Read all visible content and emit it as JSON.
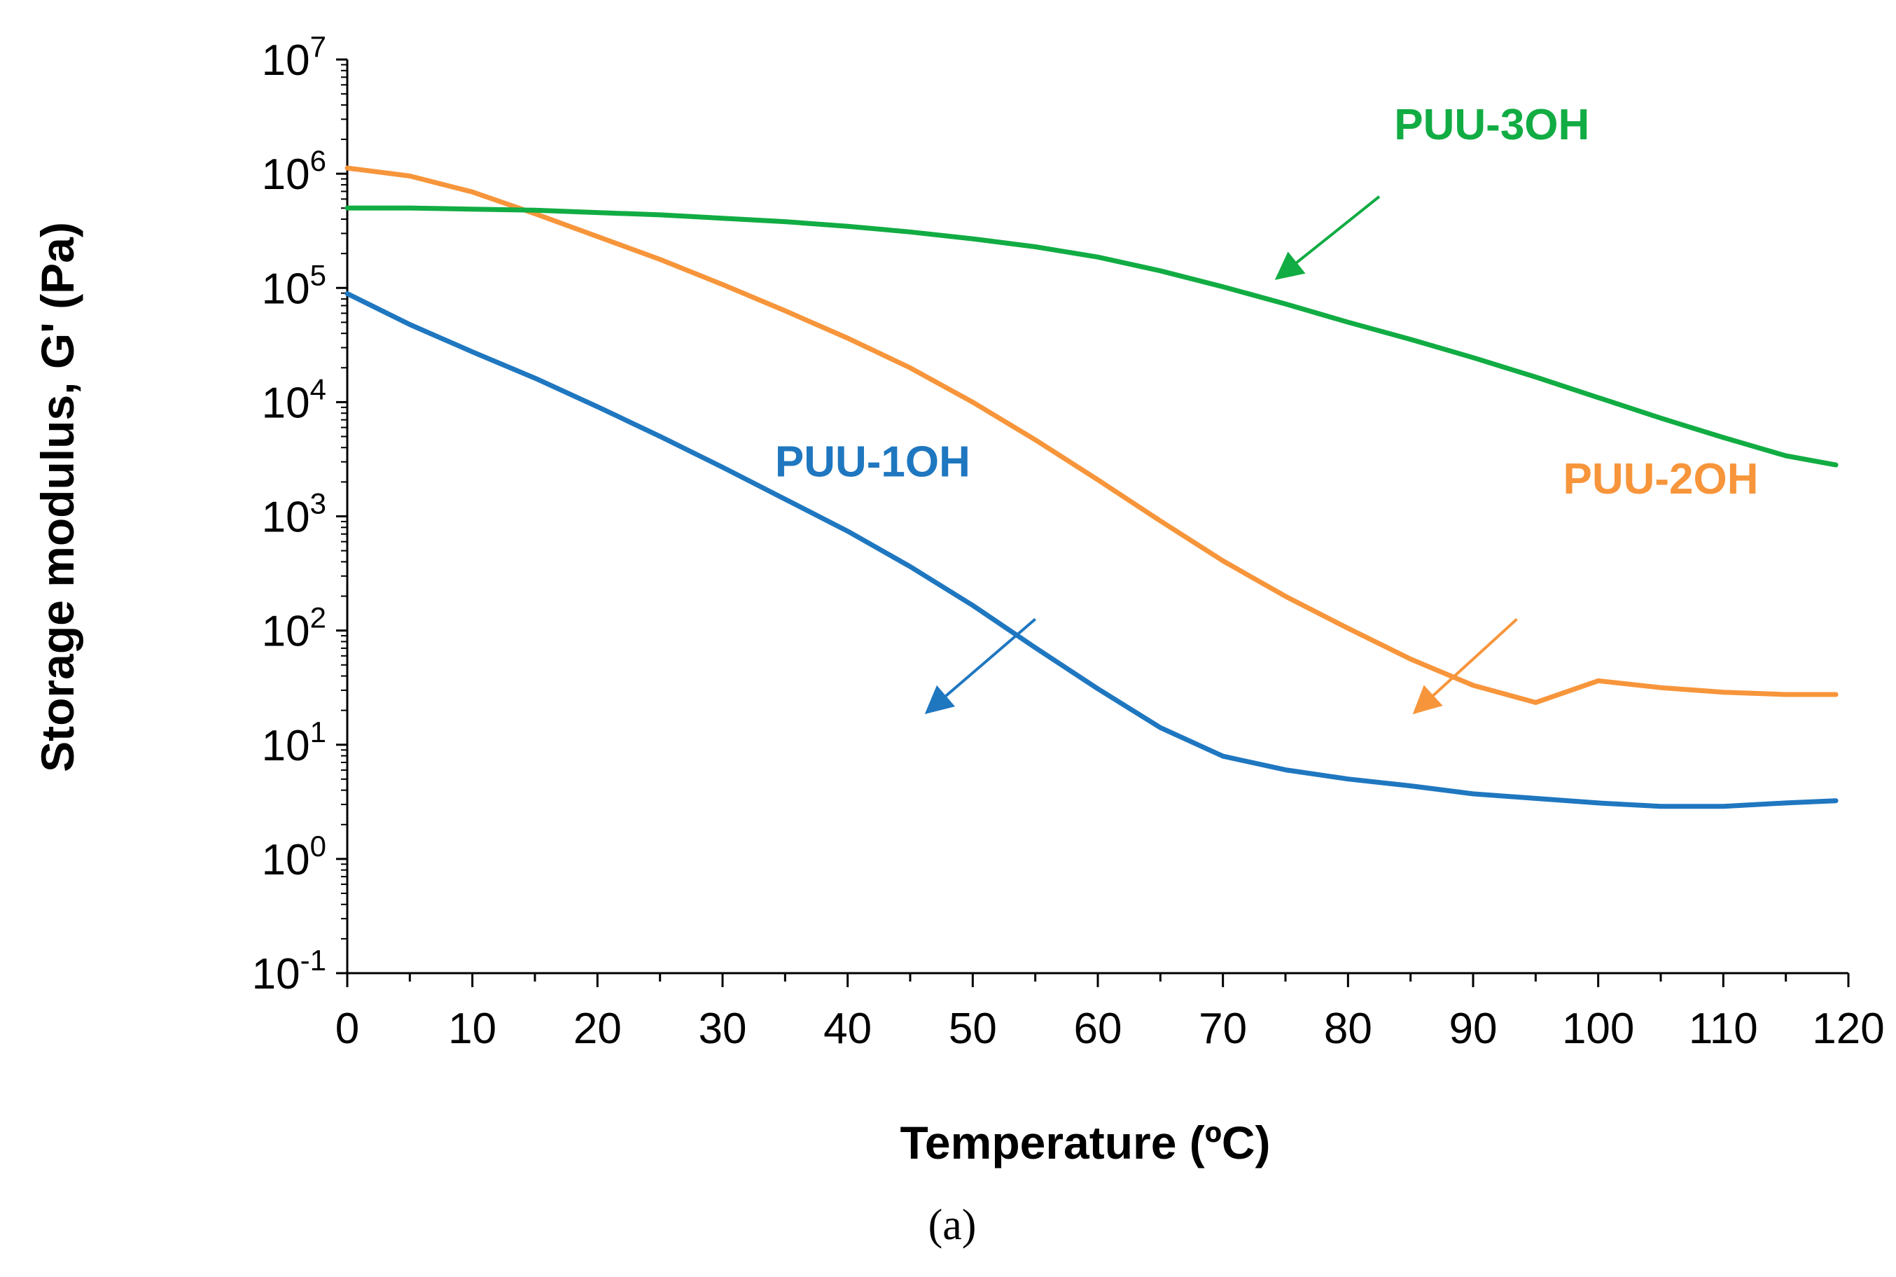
{
  "chart_data": {
    "type": "line",
    "title": "",
    "caption": "(a)",
    "xlabel": "Temperature (ºC)",
    "ylabel": "Storage modulus, G' (Pa)",
    "xlim": [
      0,
      120
    ],
    "ylim_log10": [
      -1,
      7
    ],
    "y_scale": "log",
    "grid": false,
    "x_ticks": [
      0,
      10,
      20,
      30,
      40,
      50,
      60,
      70,
      80,
      90,
      100,
      110,
      120
    ],
    "y_ticks": [
      {
        "exp": 7,
        "base": "10",
        "sup": "7"
      },
      {
        "exp": 6,
        "base": "10",
        "sup": "6"
      },
      {
        "exp": 5,
        "base": "10",
        "sup": "5"
      },
      {
        "exp": 4,
        "base": "10",
        "sup": "4"
      },
      {
        "exp": 3,
        "base": "10",
        "sup": "3"
      },
      {
        "exp": 2,
        "base": "10",
        "sup": "2"
      },
      {
        "exp": 1,
        "base": "10",
        "sup": "1"
      },
      {
        "exp": 0,
        "base": "10",
        "sup": "0"
      },
      {
        "exp": -1,
        "base": "10",
        "sup": "-1"
      }
    ],
    "series": [
      {
        "name": "PUU-1OH",
        "color": "#1f77c0",
        "label_anchor": [
          42,
          3.35
        ],
        "arrow_from": [
          55,
          2.1
        ],
        "arrow_to": [
          46.5,
          1.3
        ],
        "x": [
          0,
          5,
          10,
          15,
          20,
          25,
          30,
          35,
          40,
          45,
          50,
          55,
          60,
          65,
          70,
          75,
          80,
          85,
          90,
          95,
          100,
          105,
          110,
          115,
          119
        ],
        "log10_y": [
          4.95,
          4.68,
          4.44,
          4.21,
          3.96,
          3.7,
          3.43,
          3.15,
          2.87,
          2.56,
          2.22,
          1.85,
          1.49,
          1.15,
          0.9,
          0.78,
          0.7,
          0.64,
          0.57,
          0.53,
          0.49,
          0.46,
          0.46,
          0.49,
          0.51
        ]
      },
      {
        "name": "PUU-2OH",
        "color": "#f7953b",
        "label_anchor": [
          105,
          3.2
        ],
        "arrow_from": [
          93.5,
          2.1
        ],
        "arrow_to": [
          85.5,
          1.3
        ],
        "x": [
          0,
          5,
          10,
          15,
          20,
          25,
          30,
          35,
          40,
          45,
          50,
          55,
          60,
          65,
          70,
          75,
          80,
          85,
          90,
          95,
          100,
          105,
          110,
          115,
          119
        ],
        "log10_y": [
          6.05,
          5.98,
          5.84,
          5.65,
          5.45,
          5.25,
          5.03,
          4.8,
          4.56,
          4.3,
          4.0,
          3.67,
          3.32,
          2.96,
          2.61,
          2.3,
          2.02,
          1.75,
          1.52,
          1.37,
          1.56,
          1.5,
          1.46,
          1.44,
          1.44
        ]
      },
      {
        "name": "PUU-3OH",
        "color": "#11ac43",
        "label_anchor": [
          91.5,
          6.3
        ],
        "arrow_from": [
          82.5,
          5.8
        ],
        "arrow_to": [
          74.5,
          5.1
        ],
        "x": [
          0,
          5,
          10,
          15,
          20,
          25,
          30,
          35,
          40,
          45,
          50,
          55,
          60,
          65,
          70,
          75,
          80,
          85,
          90,
          95,
          100,
          105,
          110,
          115,
          119
        ],
        "log10_y": [
          5.7,
          5.7,
          5.69,
          5.68,
          5.66,
          5.64,
          5.61,
          5.58,
          5.54,
          5.49,
          5.43,
          5.36,
          5.27,
          5.15,
          5.01,
          4.86,
          4.7,
          4.55,
          4.39,
          4.22,
          4.04,
          3.86,
          3.69,
          3.53,
          3.45
        ]
      }
    ]
  }
}
